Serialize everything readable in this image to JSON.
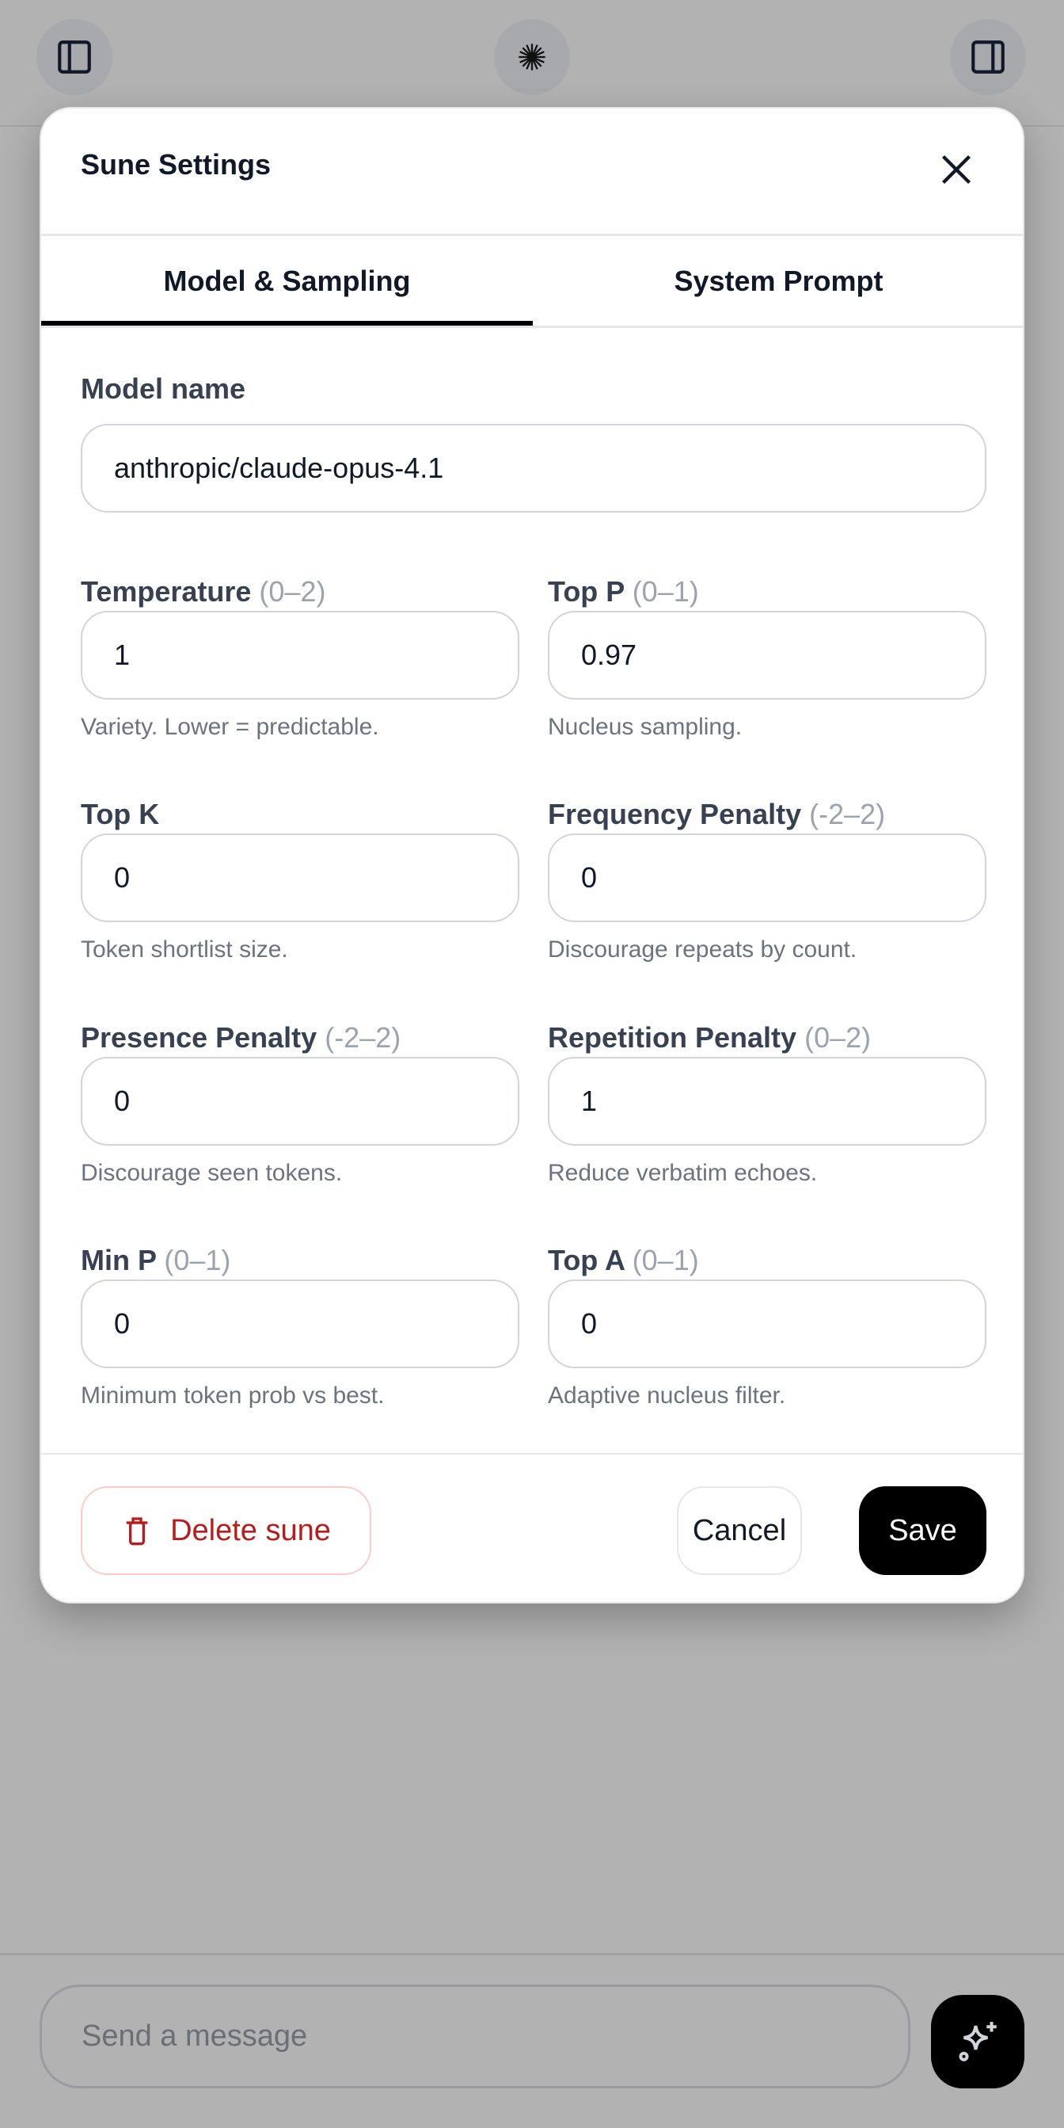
{
  "modal": {
    "title": "Sune Settings",
    "tabs": [
      {
        "label": "Model & Sampling",
        "active": true
      },
      {
        "label": "System Prompt",
        "active": false
      }
    ],
    "model_name": {
      "label": "Model name",
      "value": "anthropic/claude-opus-4.1"
    },
    "fields": [
      {
        "label": "Temperature",
        "range": "(0–2)",
        "value": "1",
        "help": "Variety. Lower = predictable."
      },
      {
        "label": "Top P",
        "range": "(0–1)",
        "value": "0.97",
        "help": "Nucleus sampling."
      },
      {
        "label": "Top K",
        "range": "",
        "value": "0",
        "help": "Token shortlist size."
      },
      {
        "label": "Frequency Penalty",
        "range": "(-2–2)",
        "value": "0",
        "help": "Discourage repeats by count."
      },
      {
        "label": "Presence Penalty",
        "range": "(-2–2)",
        "value": "0",
        "help": "Discourage seen tokens."
      },
      {
        "label": "Repetition Penalty",
        "range": "(0–2)",
        "value": "1",
        "help": "Reduce verbatim echoes."
      },
      {
        "label": "Min P",
        "range": "(0–1)",
        "value": "0",
        "help": "Minimum token prob vs best."
      },
      {
        "label": "Top A",
        "range": "(0–1)",
        "value": "0",
        "help": "Adaptive nucleus filter."
      }
    ],
    "delete_label": "Delete sune",
    "cancel_label": "Cancel",
    "save_label": "Save"
  },
  "composer": {
    "placeholder": "Send a message"
  },
  "colors": {
    "danger": "#b91c1c",
    "primary": "#000000"
  }
}
